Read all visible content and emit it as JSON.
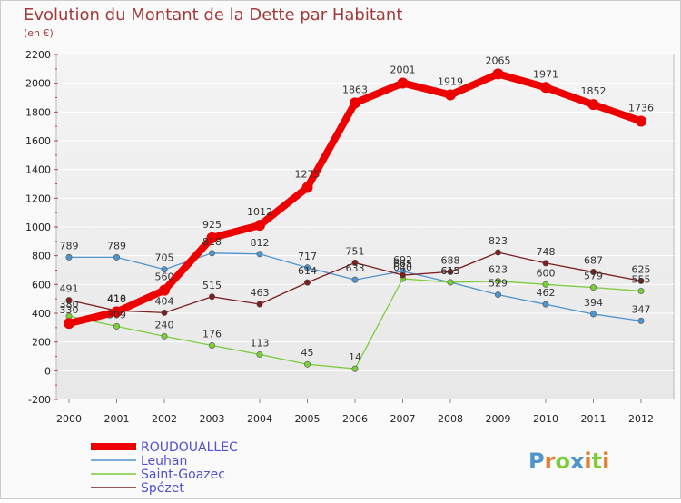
{
  "chart_data": {
    "type": "line",
    "title": "Evolution du Montant de la Dette par Habitant",
    "subtitle": "(en €)",
    "xlabel": "",
    "ylabel": "",
    "x": [
      "2000",
      "2001",
      "2002",
      "2003",
      "2004",
      "2005",
      "2006",
      "2007",
      "2008",
      "2009",
      "2010",
      "2011",
      "2012"
    ],
    "ylim": [
      -200,
      2200
    ],
    "yticks": [
      -200,
      0,
      200,
      400,
      600,
      800,
      1000,
      1200,
      1400,
      1600,
      1800,
      2000,
      2200
    ],
    "grid": "horizontal",
    "legend": "bottom-left",
    "series": [
      {
        "name": "ROUDOUALLEC",
        "color": "#ee0000",
        "values": [
          330,
          410,
          560,
          925,
          1012,
          1275,
          1863,
          2001,
          1919,
          2065,
          1971,
          1852,
          1736
        ]
      },
      {
        "name": "Leuhan",
        "color": "#4f94cd",
        "values": [
          789,
          789,
          705,
          818,
          812,
          717,
          633,
          692,
          615,
          529,
          462,
          394,
          347
        ]
      },
      {
        "name": "Saint-Goazec",
        "color": "#7ccd3c",
        "values": [
          380,
          309,
          240,
          176,
          113,
          45,
          14,
          640,
          615,
          623,
          600,
          579,
          555
        ]
      },
      {
        "name": "Spézet",
        "color": "#7b1f1f",
        "values": [
          491,
          418,
          404,
          515,
          463,
          614,
          751,
          665,
          688,
          823,
          748,
          687,
          625
        ]
      }
    ]
  },
  "logo": {
    "text": "Proxiti",
    "colors": [
      "#4f94cd",
      "#e08030",
      "#7ccd3c",
      "#4f94cd",
      "#e08030",
      "#7ccd3c",
      "#e08030"
    ]
  }
}
